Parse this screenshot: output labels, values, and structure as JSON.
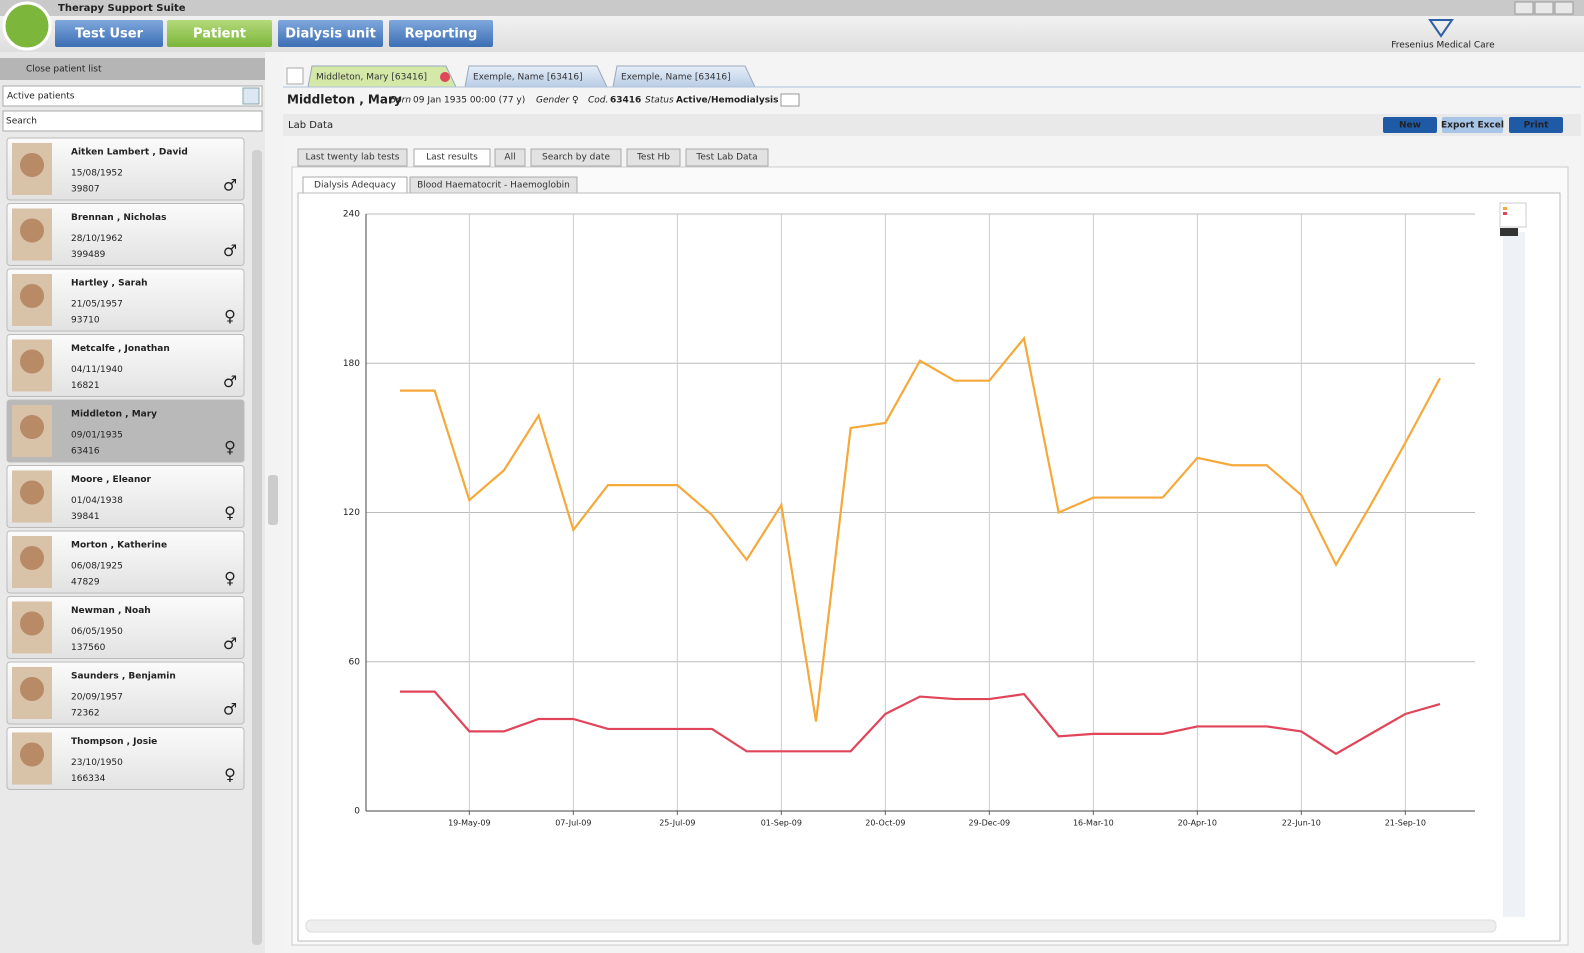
{
  "app": {
    "title": "Therapy Support Suite",
    "nav": [
      "Test User",
      "Patient",
      "Dialysis unit",
      "Reporting"
    ],
    "brand": "Fresenius Medical Care"
  },
  "sidebar": {
    "close": "Close patient list",
    "filter": "Active patients",
    "search": "Search",
    "patients": [
      {
        "name": "Aitken Lambert , David",
        "dob": "15/08/1952",
        "id": "39807",
        "gender": "♂"
      },
      {
        "name": "Brennan , Nicholas",
        "dob": "28/10/1962",
        "id": "399489",
        "gender": "♂"
      },
      {
        "name": "Hartley , Sarah",
        "dob": "21/05/1957",
        "id": "93710",
        "gender": "♀"
      },
      {
        "name": "Metcalfe , Jonathan",
        "dob": "04/11/1940",
        "id": "16821",
        "gender": "♂"
      },
      {
        "name": "Middleton , Mary",
        "dob": "09/01/1935",
        "id": "63416",
        "gender": "♀"
      },
      {
        "name": "Moore , Eleanor",
        "dob": "01/04/1938",
        "id": "39841",
        "gender": "♀"
      },
      {
        "name": "Morton , Katherine",
        "dob": "06/08/1925",
        "id": "47829",
        "gender": "♀"
      },
      {
        "name": "Newman , Noah",
        "dob": "06/05/1950",
        "id": "137560",
        "gender": "♂"
      },
      {
        "name": "Saunders , Benjamin",
        "dob": "20/09/1957",
        "id": "72362",
        "gender": "♂"
      },
      {
        "name": "Thompson , Josie",
        "dob": "23/10/1950",
        "id": "166334",
        "gender": "♀"
      }
    ]
  },
  "tabs": [
    "Middleton, Mary [63416]",
    "Exemple, Name [63416]",
    "Exemple, Name [63416]"
  ],
  "patient_header": {
    "name": "Middleton , Mary",
    "born_label": "Born",
    "born": "09 Jan 1935 00:00 (77 y)",
    "gender_label": "Gender",
    "gender": "♀",
    "cod_label": "Cod.",
    "cod": "63416",
    "status_label": "Status",
    "status": "Active/Hemodialysis"
  },
  "section": "Lab Data",
  "buttons": [
    "New",
    "Export Excel",
    "Print"
  ],
  "lab_tabs": [
    "Last twenty lab tests",
    "Last results",
    "All",
    "Search by date",
    "Test Hb",
    "Test Lab Data"
  ],
  "sub_tabs": [
    "Dialysis Adequacy",
    "Blood Haematocrit - Haemoglobin"
  ],
  "chart_data": {
    "type": "line",
    "categories": [
      null,
      null,
      "19-May-09",
      null,
      null,
      "07-Jul-09",
      null,
      null,
      "25-Jul-09",
      null,
      null,
      "01-Sep-09",
      null,
      null,
      "20-Oct-09",
      null,
      null,
      "29-Dec-09",
      null,
      null,
      "16-Mar-10",
      null,
      null,
      "20-Apr-10",
      null,
      null,
      "22-Jun-10",
      null,
      null,
      "21-Sep-10",
      null
    ],
    "series": [
      {
        "color": "#f5a93a",
        "values": [
          169,
          169,
          125,
          137,
          159,
          113,
          131,
          131,
          131,
          119,
          101,
          123,
          36,
          154,
          156,
          181,
          173,
          173,
          190,
          120,
          126,
          126,
          126,
          142,
          139,
          139,
          127,
          99,
          123,
          148,
          174
        ]
      },
      {
        "color": "#e0455a",
        "values": [
          48,
          48,
          32,
          32,
          37,
          37,
          33,
          33,
          33,
          33,
          24,
          24,
          24,
          24,
          39,
          46,
          45,
          45,
          47,
          30,
          31,
          31,
          31,
          34,
          34,
          34,
          32,
          23,
          31,
          39,
          43
        ]
      }
    ],
    "ylim": [
      0,
      240
    ],
    "yticks": [
      0,
      60,
      120,
      180,
      240
    ],
    "grid": true
  }
}
